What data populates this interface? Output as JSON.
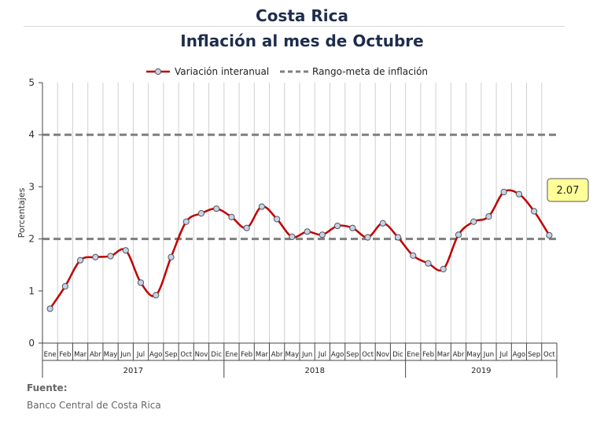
{
  "header": {
    "title": "Costa Rica",
    "subtitle": "Inflación al mes de Octubre"
  },
  "footer": {
    "source_label": "Fuente:",
    "source_name": "Banco Central de Costa Rica"
  },
  "chart_data": {
    "type": "line",
    "ylabel": "Porcentajes",
    "ylim": [
      0,
      5
    ],
    "yticks": [
      "0",
      "1",
      "2",
      "3",
      "4",
      "5"
    ],
    "grid": "vertical",
    "legend_position": "top",
    "categories": [
      "Ene",
      "Feb",
      "Mar",
      "Abr",
      "May",
      "Jun",
      "Jul",
      "Ago",
      "Sep",
      "Oct",
      "Nov",
      "Dic",
      "Ene",
      "Feb",
      "Mar",
      "Abr",
      "May",
      "Jun",
      "Jul",
      "Ago",
      "Sep",
      "Oct",
      "Nov",
      "Dic",
      "Ene",
      "Feb",
      "Mar",
      "Abr",
      "May",
      "Jun",
      "Jul",
      "Ago",
      "Sep",
      "Oct"
    ],
    "years": [
      {
        "label": "2017",
        "start": 0,
        "count": 12
      },
      {
        "label": "2018",
        "start": 12,
        "count": 12
      },
      {
        "label": "2019",
        "start": 24,
        "count": 10
      }
    ],
    "series": [
      {
        "name": "Variación interanual",
        "color": "#c00000",
        "marker_fill": "#c5d3ea",
        "values": [
          0.66,
          1.09,
          1.59,
          1.65,
          1.67,
          1.78,
          1.16,
          0.92,
          1.65,
          2.33,
          2.49,
          2.58,
          2.42,
          2.21,
          2.62,
          2.38,
          2.04,
          2.14,
          2.08,
          2.25,
          2.21,
          2.03,
          2.3,
          2.03,
          1.68,
          1.53,
          1.42,
          2.08,
          2.33,
          2.43,
          2.9,
          2.86,
          2.53,
          2.07
        ]
      },
      {
        "name": "Rango-meta de inflación",
        "color": "#7f7f7f",
        "style": "dashed",
        "levels": [
          2,
          4
        ]
      }
    ],
    "callout": {
      "value": "2.07",
      "fill": "#ffff99"
    }
  }
}
